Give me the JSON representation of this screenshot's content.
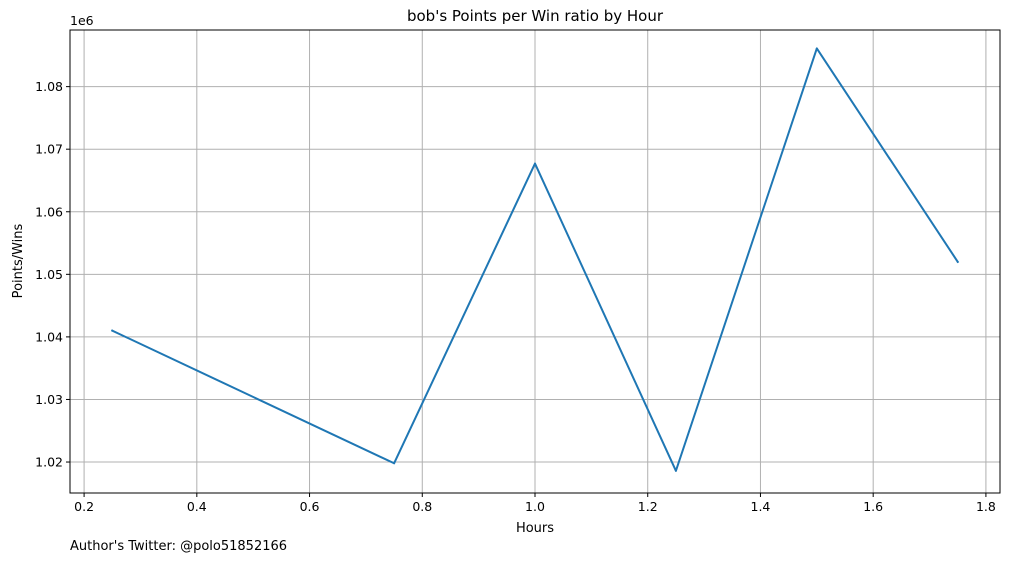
{
  "chart_data": {
    "type": "line",
    "title": "bob's Points per Win ratio by Hour",
    "xlabel": "Hours",
    "ylabel": "Points/Wins",
    "y_offset_label": "1e6",
    "xlim": [
      0.175,
      1.825
    ],
    "ylim": [
      1015050,
      1089050
    ],
    "xticks": [
      0.2,
      0.4,
      0.6,
      0.8,
      1.0,
      1.2,
      1.4,
      1.6,
      1.8
    ],
    "xtick_labels": [
      "0.2",
      "0.4",
      "0.6",
      "0.8",
      "1.0",
      "1.2",
      "1.4",
      "1.6",
      "1.8"
    ],
    "yticks": [
      1020000,
      1030000,
      1040000,
      1050000,
      1060000,
      1070000,
      1080000
    ],
    "ytick_labels": [
      "1.02",
      "1.03",
      "1.04",
      "1.05",
      "1.06",
      "1.07",
      "1.08"
    ],
    "grid": true,
    "series": [
      {
        "color": "#1f77b4",
        "x": [
          0.25,
          0.75,
          1.0,
          1.25,
          1.5,
          1.75
        ],
        "y": [
          1041000,
          1019800,
          1067700,
          1018600,
          1086100,
          1052000
        ]
      }
    ]
  },
  "footer": {
    "text": "Author's Twitter: @polo51852166"
  }
}
